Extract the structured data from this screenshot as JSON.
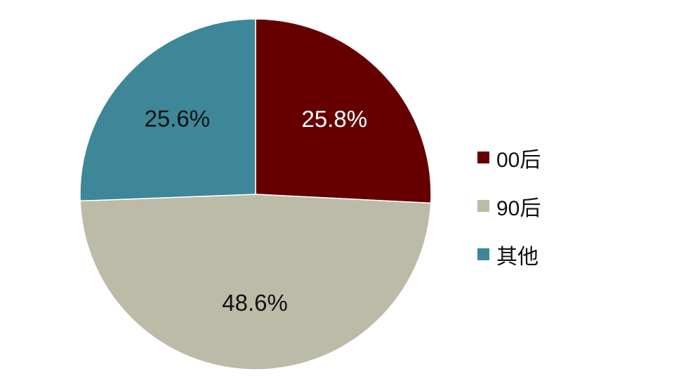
{
  "chart_data": {
    "type": "pie",
    "categories": [
      "00后",
      "90后",
      "其他"
    ],
    "values": [
      25.8,
      48.6,
      25.6
    ],
    "labels": [
      "25.8%",
      "48.6%",
      "25.6%"
    ],
    "colors": [
      "#660000",
      "#BBBBA8",
      "#3D8799"
    ],
    "label_colors": [
      "#ffffff",
      "#111111",
      "#111111"
    ],
    "legend_position": "right"
  }
}
